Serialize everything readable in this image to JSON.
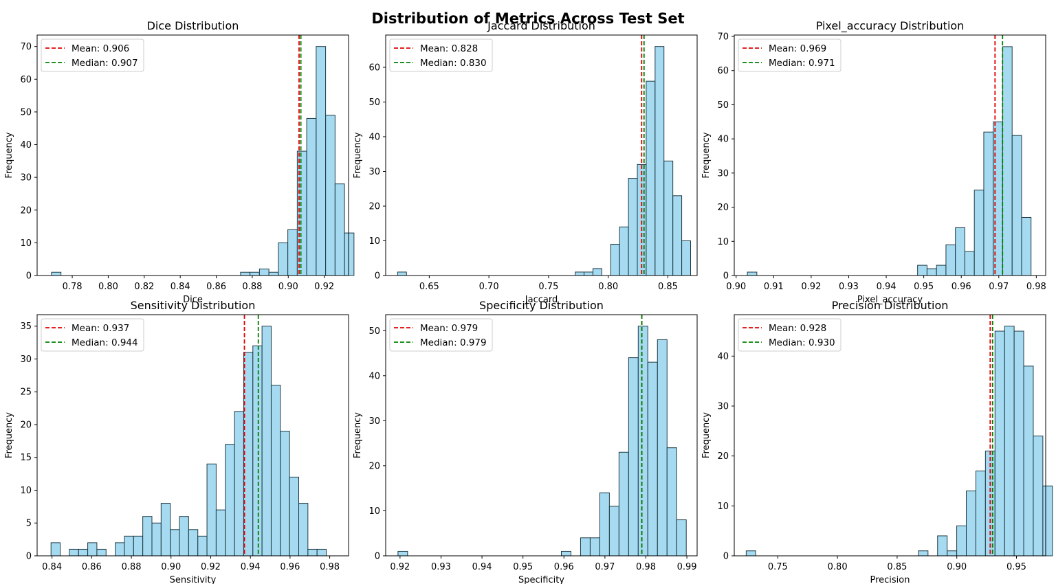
{
  "figure": {
    "title": "Distribution of Metrics Across Test Set"
  },
  "colors": {
    "bar_fill": "#87ceeb",
    "bar_edge": "#1f3a44",
    "mean_line": "#e00000",
    "median_line": "#008000"
  },
  "chart_data": [
    {
      "type": "bar",
      "title": "Dice Distribution",
      "xlabel": "Dice",
      "ylabel": "Frequency",
      "xlim": [
        0.7605,
        0.9335
      ],
      "ylim": [
        0,
        73.5
      ],
      "xticks": [
        0.78,
        0.8,
        0.82,
        0.84,
        0.86,
        0.88,
        0.9,
        0.92
      ],
      "xtick_labels": [
        "0.78",
        "0.80",
        "0.82",
        "0.84",
        "0.86",
        "0.88",
        "0.90",
        "0.92"
      ],
      "yticks": [
        0,
        10,
        20,
        30,
        40,
        50,
        60,
        70
      ],
      "ytick_labels": [
        "0",
        "10",
        "20",
        "30",
        "40",
        "50",
        "60",
        "70"
      ],
      "bins_start": 0.7685,
      "bin_width": 0.00525,
      "values": [
        1,
        0,
        0,
        0,
        0,
        0,
        0,
        0,
        0,
        0,
        0,
        0,
        0,
        0,
        0,
        0,
        0,
        0,
        0,
        0,
        1,
        1,
        2,
        1,
        10,
        14,
        38,
        48,
        70,
        49,
        28,
        13
      ],
      "mean": 0.906,
      "median": 0.907,
      "mean_label": "Mean: 0.906",
      "median_label": "Median: 0.907"
    },
    {
      "type": "bar",
      "title": "Jaccard Distribution",
      "xlabel": "Jaccard",
      "ylabel": "Frequency",
      "xlim": [
        0.6135,
        0.8745
      ],
      "ylim": [
        0,
        69.3
      ],
      "xticks": [
        0.65,
        0.7,
        0.75,
        0.8,
        0.85
      ],
      "xtick_labels": [
        "0.65",
        "0.70",
        "0.75",
        "0.80",
        "0.85"
      ],
      "yticks": [
        0,
        10,
        20,
        30,
        40,
        50,
        60
      ],
      "ytick_labels": [
        "0",
        "10",
        "20",
        "30",
        "40",
        "50",
        "60"
      ],
      "bins_start": 0.6235,
      "bin_width": 0.00744,
      "values": [
        1,
        0,
        0,
        0,
        0,
        0,
        0,
        0,
        0,
        0,
        0,
        0,
        0,
        0,
        0,
        0,
        0,
        0,
        0,
        0,
        1,
        1,
        2,
        0,
        9,
        14,
        28,
        32,
        56,
        66,
        33,
        23,
        10
      ],
      "mean": 0.828,
      "median": 0.83,
      "mean_label": "Mean: 0.828",
      "median_label": "Median: 0.830"
    },
    {
      "type": "bar",
      "title": "Pixel_accuracy Distribution",
      "xlabel": "Pixel_accuracy",
      "ylabel": "Frequency",
      "xlim": [
        0.8995,
        0.9825
      ],
      "ylim": [
        0,
        70.4
      ],
      "xticks": [
        0.9,
        0.91,
        0.92,
        0.93,
        0.94,
        0.95,
        0.96,
        0.97,
        0.98
      ],
      "xtick_labels": [
        "0.90",
        "0.91",
        "0.92",
        "0.93",
        "0.94",
        "0.95",
        "0.96",
        "0.97",
        "0.98"
      ],
      "yticks": [
        0,
        10,
        20,
        30,
        40,
        50,
        60,
        70
      ],
      "ytick_labels": [
        "0",
        "10",
        "20",
        "30",
        "40",
        "50",
        "60",
        "70"
      ],
      "bins_start": 0.903,
      "bin_width": 0.00252,
      "values": [
        1,
        0,
        0,
        0,
        0,
        0,
        0,
        0,
        0,
        0,
        0,
        0,
        0,
        0,
        0,
        0,
        0,
        0,
        3,
        2,
        3,
        9,
        14,
        7,
        25,
        42,
        45,
        67,
        41,
        17
      ],
      "mean": 0.969,
      "median": 0.971,
      "mean_label": "Mean: 0.969",
      "median_label": "Median: 0.971"
    },
    {
      "type": "bar",
      "title": "Sensitivity Distribution",
      "xlabel": "Sensitivity",
      "ylabel": "Frequency",
      "xlim": [
        0.8325,
        0.9895
      ],
      "ylim": [
        0,
        36.75
      ],
      "xticks": [
        0.84,
        0.86,
        0.88,
        0.9,
        0.92,
        0.94,
        0.96,
        0.98
      ],
      "xtick_labels": [
        "0.84",
        "0.86",
        "0.88",
        "0.90",
        "0.92",
        "0.94",
        "0.96",
        "0.98"
      ],
      "yticks": [
        0,
        5,
        10,
        15,
        20,
        25,
        30,
        35
      ],
      "ytick_labels": [
        "0",
        "5",
        "10",
        "15",
        "20",
        "25",
        "30",
        "35"
      ],
      "bins_start": 0.8395,
      "bin_width": 0.004625,
      "values": [
        2,
        0,
        1,
        1,
        2,
        1,
        0,
        2,
        3,
        3,
        6,
        5,
        8,
        4,
        6,
        4,
        3,
        14,
        7,
        17,
        22,
        31,
        32,
        35,
        26,
        19,
        12,
        8,
        1,
        1
      ],
      "mean": 0.937,
      "median": 0.944,
      "mean_label": "Mean: 0.937",
      "median_label": "Median: 0.944"
    },
    {
      "type": "bar",
      "title": "Specificity Distribution",
      "xlabel": "Specificity",
      "ylabel": "Frequency",
      "xlim": [
        0.9165,
        0.9925
      ],
      "ylim": [
        0,
        53.55
      ],
      "xticks": [
        0.92,
        0.93,
        0.94,
        0.95,
        0.96,
        0.97,
        0.98,
        0.99
      ],
      "xtick_labels": [
        "0.92",
        "0.93",
        "0.94",
        "0.95",
        "0.96",
        "0.97",
        "0.98",
        "0.99"
      ],
      "yticks": [
        0,
        10,
        20,
        30,
        40,
        50
      ],
      "ytick_labels": [
        "0",
        "10",
        "20",
        "30",
        "40",
        "50"
      ],
      "bins_start": 0.9195,
      "bin_width": 0.002345,
      "values": [
        1,
        0,
        0,
        0,
        0,
        0,
        0,
        0,
        0,
        0,
        0,
        0,
        0,
        0,
        0,
        0,
        0,
        1,
        0,
        4,
        4,
        14,
        11,
        23,
        44,
        51,
        43,
        48,
        24,
        8
      ],
      "mean": 0.979,
      "median": 0.979,
      "mean_label": "Mean: 0.979",
      "median_label": "Median: 0.979"
    },
    {
      "type": "bar",
      "title": "Precision Distribution",
      "xlabel": "Precision",
      "ylabel": "Frequency",
      "xlim": [
        0.7135,
        0.9745
      ],
      "ylim": [
        0,
        48.3
      ],
      "xticks": [
        0.75,
        0.8,
        0.85,
        0.9,
        0.95
      ],
      "xtick_labels": [
        "0.75",
        "0.80",
        "0.85",
        "0.90",
        "0.95"
      ],
      "yticks": [
        0,
        10,
        20,
        30,
        40
      ],
      "ytick_labels": [
        "0",
        "10",
        "20",
        "30",
        "40"
      ],
      "bins_start": 0.7235,
      "bin_width": 0.00802,
      "values": [
        1,
        0,
        0,
        0,
        0,
        0,
        0,
        0,
        0,
        0,
        0,
        0,
        0,
        0,
        0,
        0,
        0,
        0,
        1,
        0,
        4,
        1,
        6,
        13,
        17,
        21,
        45,
        46,
        45,
        38,
        24,
        14
      ],
      "mean": 0.928,
      "median": 0.93,
      "mean_label": "Mean: 0.928",
      "median_label": "Median: 0.930"
    }
  ]
}
